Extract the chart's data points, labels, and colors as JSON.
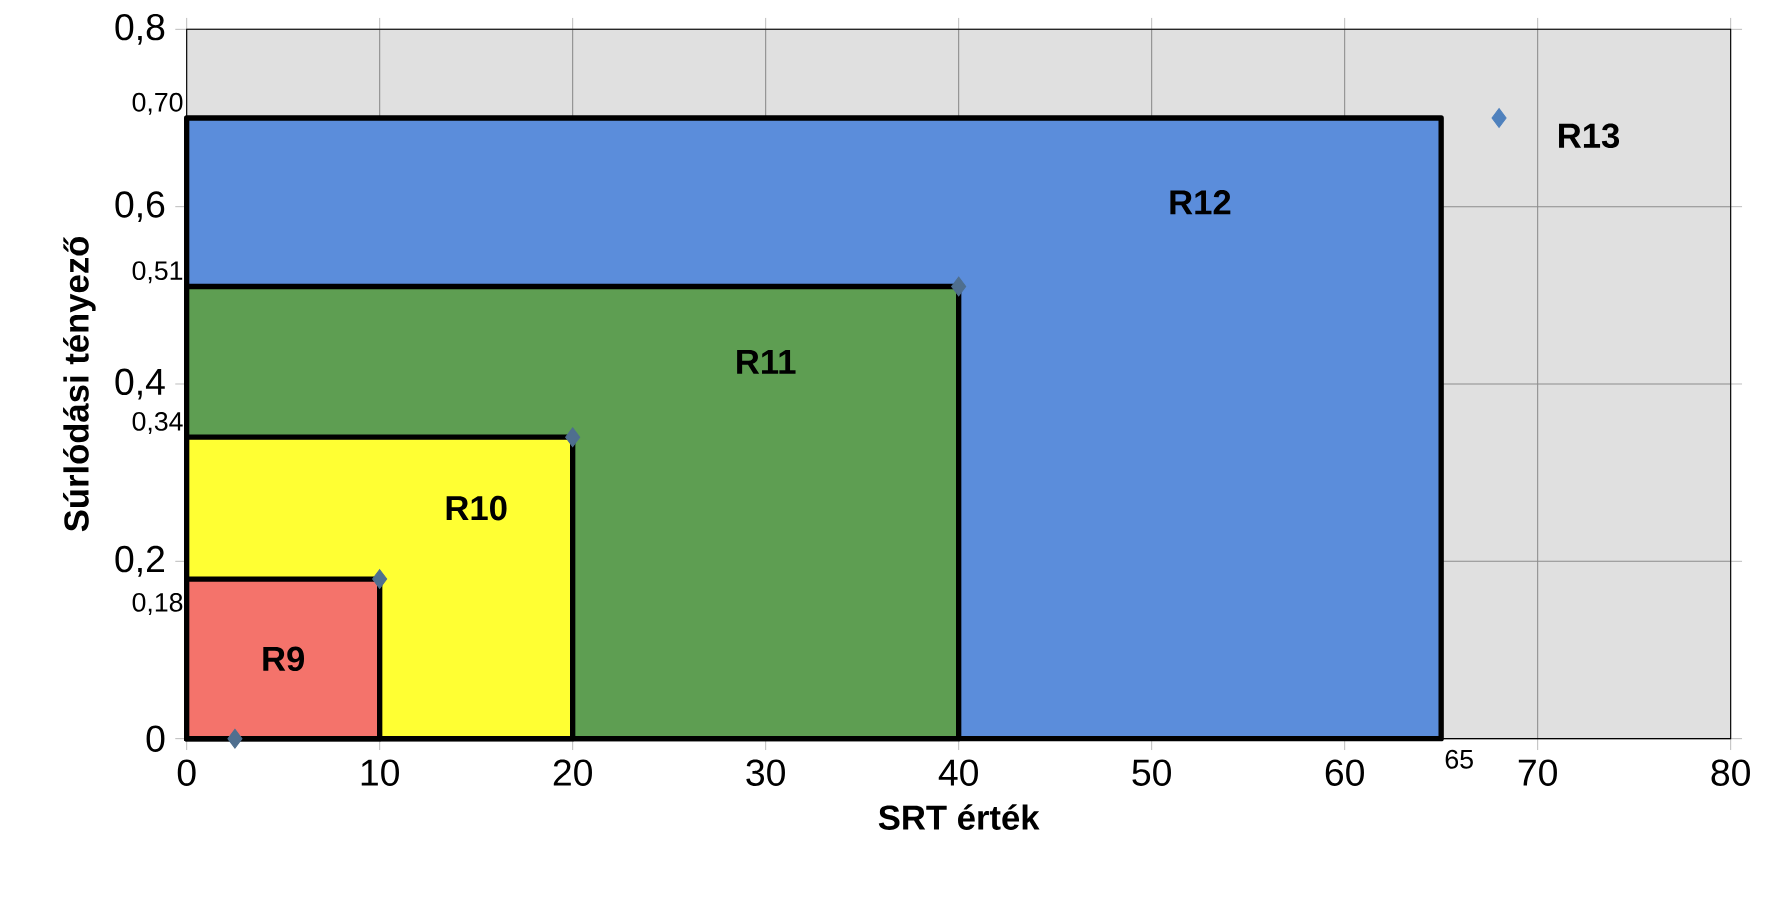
{
  "chart_data": {
    "type": "area",
    "xlabel": "SRT érték",
    "ylabel": "Súrlódási tényező",
    "xlim": [
      0,
      80
    ],
    "ylim": [
      0,
      0.8
    ],
    "xticks": [
      0,
      10,
      20,
      30,
      40,
      50,
      60,
      70,
      80
    ],
    "yticks": [
      {
        "value": 0,
        "label": "0"
      },
      {
        "value": 0.2,
        "label": "0,2"
      },
      {
        "value": 0.4,
        "label": "0,4"
      },
      {
        "value": 0.6,
        "label": "0,6"
      },
      {
        "value": 0.8,
        "label": "0,8"
      }
    ],
    "grid": true,
    "series": [
      {
        "name": "R9",
        "color": "#f4736b",
        "x": [
          0,
          10
        ],
        "values": [
          0.18,
          0.18
        ]
      },
      {
        "name": "R10",
        "color": "#ffff33",
        "x": [
          0,
          20
        ],
        "values": [
          0.34,
          0.34
        ]
      },
      {
        "name": "R11",
        "color": "#5e9e52",
        "x": [
          0,
          40
        ],
        "values": [
          0.51,
          0.51
        ]
      },
      {
        "name": "R12",
        "color": "#5b8ddb",
        "x": [
          0,
          65
        ],
        "values": [
          0.7,
          0.7
        ]
      },
      {
        "type": "scatter",
        "marker": "diamond",
        "color": "#4f6f8f",
        "x": [
          2.5,
          10,
          20,
          40
        ],
        "values": [
          0,
          0.18,
          0.34,
          0.51
        ]
      },
      {
        "name": "R13",
        "type": "scatter",
        "marker": "diamond",
        "color": "#4f81bd",
        "x": [
          68
        ],
        "values": [
          0.7
        ]
      }
    ],
    "annotations": [
      "0,70",
      "0,51",
      "0,34",
      "0,18",
      "65"
    ]
  }
}
